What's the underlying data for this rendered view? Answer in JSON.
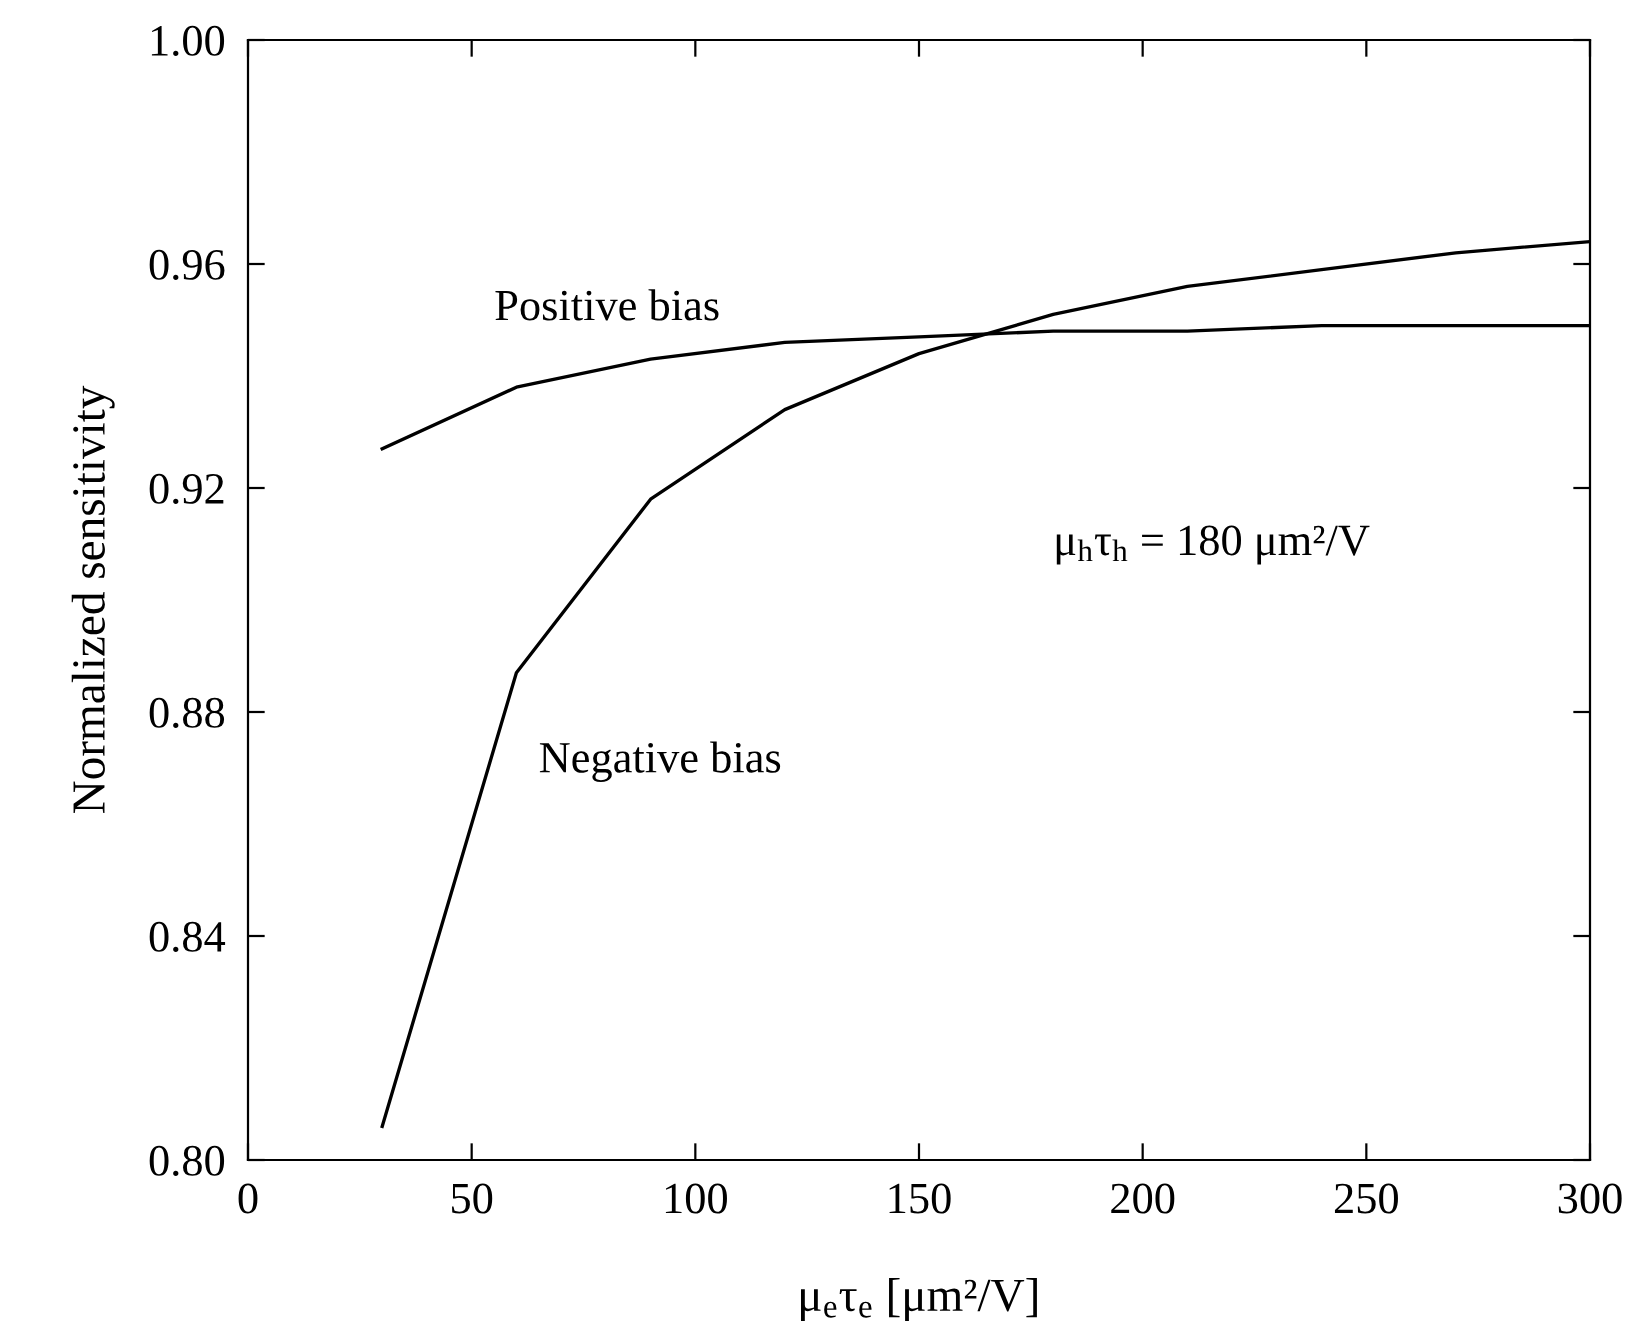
{
  "chart_data": {
    "type": "line",
    "xlabel": "μ$_{e}$τ$_{e}$ [μm²/V]",
    "ylabel": "Normalized sensitivity",
    "x": [
      30,
      60,
      90,
      120,
      150,
      180,
      210,
      240,
      270,
      300
    ],
    "series": [
      {
        "name": "Positive bias",
        "color": "#000000",
        "values": [
          0.927,
          0.938,
          0.943,
          0.946,
          0.947,
          0.948,
          0.948,
          0.949,
          0.949,
          0.949
        ]
      },
      {
        "name": "Negative bias",
        "color": "#000000",
        "values": [
          0.806,
          0.887,
          0.918,
          0.934,
          0.944,
          0.951,
          0.956,
          0.959,
          0.962,
          0.964
        ]
      }
    ],
    "annotations": [
      "μ$_{h}$τ$_{h}$ = 180 μm²/V"
    ],
    "xlim": [
      0,
      300
    ],
    "xticks": [
      0,
      50,
      100,
      150,
      200,
      250,
      300
    ],
    "ylim": [
      0.8,
      1.0
    ],
    "yticks": [
      {
        "value": 0.8,
        "label": "0.80"
      },
      {
        "value": 0.84,
        "label": "0.84"
      },
      {
        "value": 0.88,
        "label": "0.88"
      },
      {
        "value": 0.92,
        "label": "0.92"
      },
      {
        "value": 0.96,
        "label": "0.96"
      },
      {
        "value": 1.0,
        "label": "1.00"
      }
    ],
    "grid": false,
    "legend": false,
    "marker": "none",
    "line_style": "solid"
  }
}
